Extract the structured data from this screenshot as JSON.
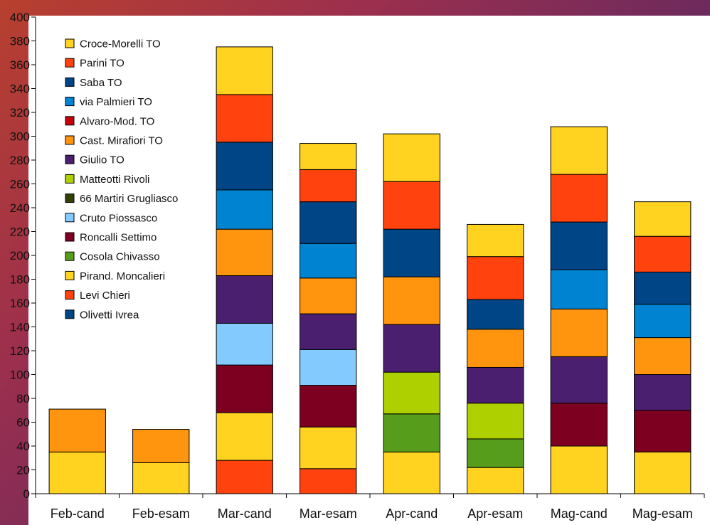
{
  "chart_data": {
    "type": "bar",
    "stacked": true,
    "title": "",
    "xlabel": "",
    "ylabel": "",
    "ylim": [
      0,
      400
    ],
    "ytick_step": 20,
    "grid": false,
    "legend_position": "top-left",
    "categories": [
      "Feb-cand",
      "Feb-esam",
      "Mar-cand",
      "Mar-esam",
      "Apr-cand",
      "Apr-esam",
      "Mag-cand",
      "Mag-esam"
    ],
    "series": [
      {
        "name": "Olivetti Ivrea",
        "color": "#004586",
        "values": [
          0,
          0,
          0,
          0,
          0,
          0,
          0,
          0
        ]
      },
      {
        "name": "Levi Chieri",
        "color": "#ff420e",
        "values": [
          0,
          0,
          28,
          21,
          0,
          0,
          0,
          0
        ]
      },
      {
        "name": "Pirand. Moncalieri",
        "color": "#ffd320",
        "values": [
          35,
          26,
          40,
          35,
          35,
          22,
          40,
          35
        ]
      },
      {
        "name": "Cosola Chivasso",
        "color": "#579d1c",
        "values": [
          0,
          0,
          0,
          0,
          32,
          24,
          0,
          0
        ]
      },
      {
        "name": "Roncalli Settimo",
        "color": "#7e0021",
        "values": [
          0,
          0,
          40,
          35,
          0,
          0,
          36,
          35
        ]
      },
      {
        "name": "Cruto Piossasco",
        "color": "#83caff",
        "values": [
          0,
          0,
          35,
          30,
          0,
          0,
          0,
          0
        ]
      },
      {
        "name": "66 Martiri Grugliasco",
        "color": "#314004",
        "values": [
          0,
          0,
          0,
          0,
          0,
          0,
          0,
          0
        ]
      },
      {
        "name": "Matteotti Rivoli",
        "color": "#aecf00",
        "values": [
          0,
          0,
          0,
          0,
          35,
          30,
          0,
          0
        ]
      },
      {
        "name": "Giulio TO",
        "color": "#4b1f6f",
        "values": [
          0,
          0,
          40,
          30,
          40,
          30,
          39,
          30
        ]
      },
      {
        "name": "Cast. Mirafiori TO",
        "color": "#ff950e",
        "values": [
          36,
          28,
          39,
          30,
          40,
          32,
          40,
          31
        ]
      },
      {
        "name": "Alvaro-Mod. TO",
        "color": "#c5000b",
        "values": [
          0,
          0,
          0,
          0,
          0,
          0,
          0,
          0
        ]
      },
      {
        "name": "via Palmieri TO",
        "color": "#0084d1",
        "values": [
          0,
          0,
          33,
          29,
          0,
          0,
          33,
          28
        ]
      },
      {
        "name": "Saba TO",
        "color": "#004586",
        "values": [
          0,
          0,
          40,
          35,
          40,
          25,
          40,
          27
        ]
      },
      {
        "name": "Parini TO",
        "color": "#ff420e",
        "values": [
          0,
          0,
          40,
          27,
          40,
          36,
          40,
          30
        ]
      },
      {
        "name": "Croce-Morelli TO",
        "color": "#ffd320",
        "values": [
          0,
          0,
          40,
          22,
          40,
          27,
          40,
          29
        ]
      }
    ],
    "legend_order": [
      "Croce-Morelli TO",
      "Parini TO",
      "Saba TO",
      "via Palmieri TO",
      "Alvaro-Mod. TO",
      "Cast. Mirafiori TO",
      "Giulio TO",
      "Matteotti Rivoli",
      "66 Martiri Grugliasco",
      "Cruto Piossasco",
      "Roncalli Settimo",
      "Cosola Chivasso",
      "Pirand. Moncalieri",
      "Levi Chieri",
      "Olivetti Ivrea"
    ]
  }
}
